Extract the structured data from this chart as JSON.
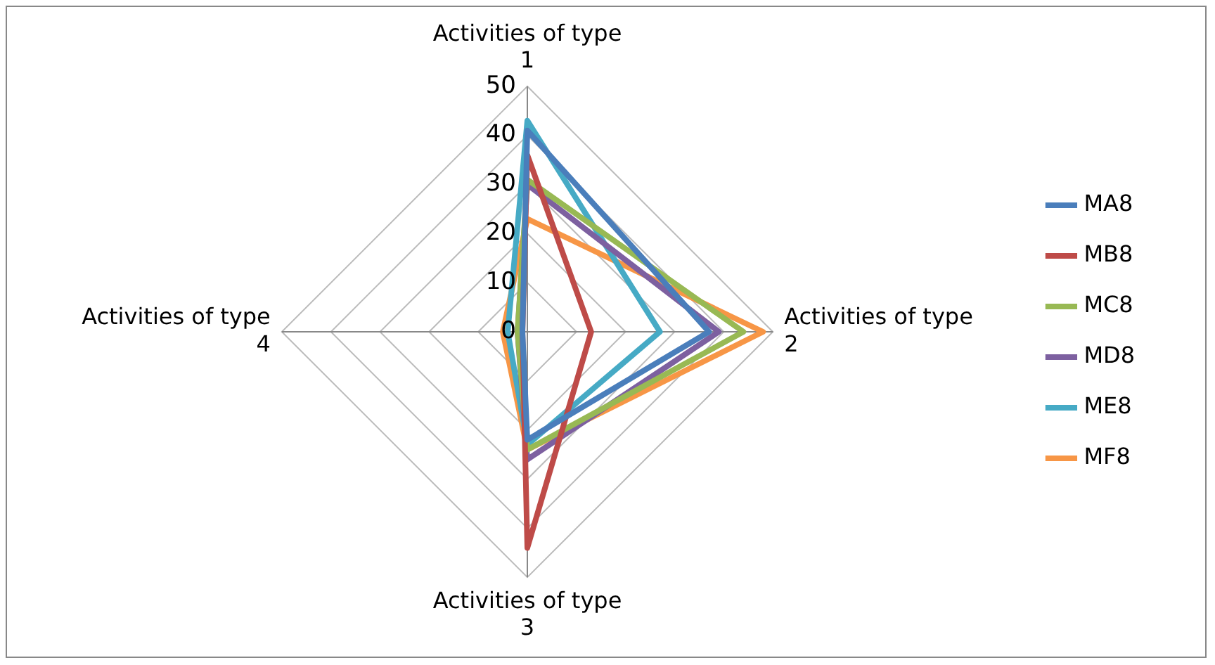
{
  "chart_data": {
    "type": "radar",
    "categories": [
      "Activities of type 1",
      "Activities of type 2",
      "Activities of type 3",
      "Activities of type 4"
    ],
    "series": [
      {
        "name": "MA8",
        "color": "#4a7ebb",
        "values": [
          41,
          37,
          22,
          1
        ]
      },
      {
        "name": "MB8",
        "color": "#be4b48",
        "values": [
          36,
          13,
          44,
          1
        ]
      },
      {
        "name": "MC8",
        "color": "#98b954",
        "values": [
          31,
          44,
          24,
          2
        ]
      },
      {
        "name": "MD8",
        "color": "#7d60a0",
        "values": [
          30,
          39,
          26,
          2
        ]
      },
      {
        "name": "ME8",
        "color": "#46aac5",
        "values": [
          43,
          27,
          23,
          4
        ]
      },
      {
        "name": "MF8",
        "color": "#f79646",
        "values": [
          23,
          48,
          24,
          5
        ]
      }
    ],
    "ylim": [
      0,
      50
    ],
    "yticks": [
      0,
      10,
      20,
      30,
      40,
      50
    ],
    "grid": true,
    "legend": "right",
    "marker": "none"
  }
}
